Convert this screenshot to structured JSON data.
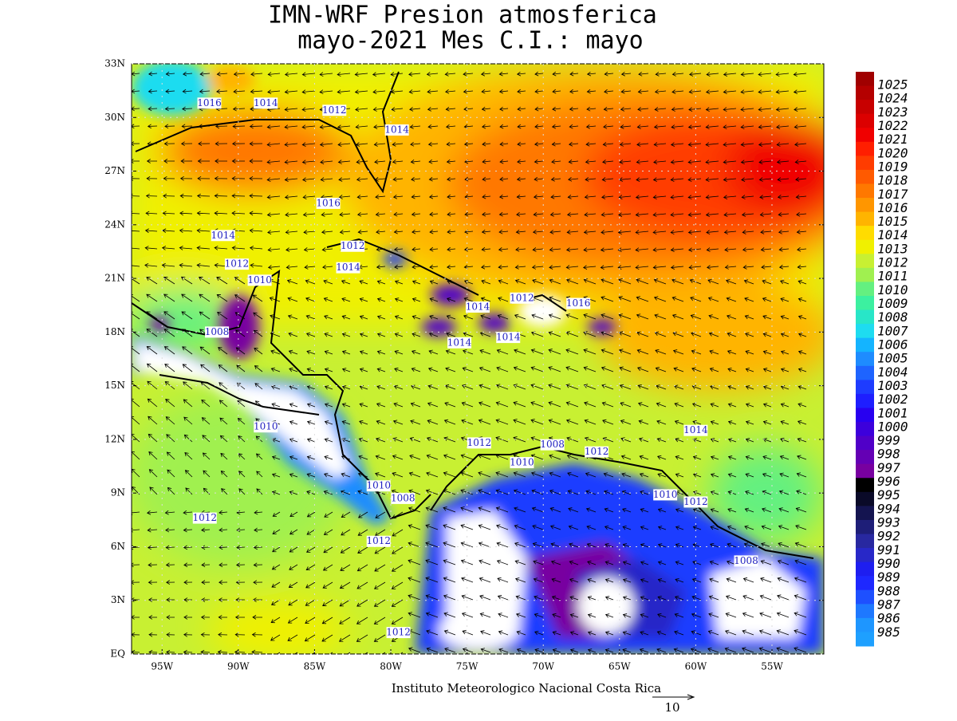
{
  "title": {
    "line1": "IMN-WRF  Presion atmosferica",
    "line2": "mayo-2021 Mes C.I.: mayo"
  },
  "map": {
    "xlim": [
      -97,
      -51.6
    ],
    "ylim": [
      0,
      33
    ],
    "lat_ticks": [
      {
        "value": 0,
        "label": "EQ"
      },
      {
        "value": 3,
        "label": "3N"
      },
      {
        "value": 6,
        "label": "6N"
      },
      {
        "value": 9,
        "label": "9N"
      },
      {
        "value": 12,
        "label": "12N"
      },
      {
        "value": 15,
        "label": "15N"
      },
      {
        "value": 18,
        "label": "18N"
      },
      {
        "value": 21,
        "label": "21N"
      },
      {
        "value": 24,
        "label": "24N"
      },
      {
        "value": 27,
        "label": "27N"
      },
      {
        "value": 30,
        "label": "30N"
      },
      {
        "value": 33,
        "label": "33N"
      }
    ],
    "lon_ticks": [
      {
        "value": -95,
        "label": "95W"
      },
      {
        "value": -90,
        "label": "90W"
      },
      {
        "value": -85,
        "label": "85W"
      },
      {
        "value": -80,
        "label": "80W"
      },
      {
        "value": -75,
        "label": "75W"
      },
      {
        "value": -70,
        "label": "70W"
      },
      {
        "value": -65,
        "label": "65W"
      },
      {
        "value": -60,
        "label": "60W"
      },
      {
        "value": -55,
        "label": "55W"
      }
    ],
    "contour_labels": [
      {
        "value": 1016,
        "lat": 30.8,
        "lon": -91.9
      },
      {
        "value": 1014,
        "lat": 30.8,
        "lon": -88.2
      },
      {
        "value": 1012,
        "lat": 30.4,
        "lon": -83.7
      },
      {
        "value": 1014,
        "lat": 29.3,
        "lon": -79.6
      },
      {
        "value": 1016,
        "lat": 25.2,
        "lon": -84.1
      },
      {
        "value": 1014,
        "lat": 23.4,
        "lon": -91.0
      },
      {
        "value": 1012,
        "lat": 22.8,
        "lon": -82.5
      },
      {
        "value": 1014,
        "lat": 21.6,
        "lon": -82.8
      },
      {
        "value": 1012,
        "lat": 21.8,
        "lon": -90.1
      },
      {
        "value": 1010,
        "lat": 20.9,
        "lon": -88.6
      },
      {
        "value": 1008,
        "lat": 18.0,
        "lon": -91.4
      },
      {
        "value": 1014,
        "lat": 19.4,
        "lon": -74.3
      },
      {
        "value": 1012,
        "lat": 19.9,
        "lon": -71.4
      },
      {
        "value": 1016,
        "lat": 19.6,
        "lon": -67.7
      },
      {
        "value": 1014,
        "lat": 17.4,
        "lon": -75.5
      },
      {
        "value": 1014,
        "lat": 17.7,
        "lon": -72.3
      },
      {
        "value": 1010,
        "lat": 12.7,
        "lon": -88.2
      },
      {
        "value": 1012,
        "lat": 11.8,
        "lon": -74.2
      },
      {
        "value": 1008,
        "lat": 11.7,
        "lon": -69.4
      },
      {
        "value": 1012,
        "lat": 11.3,
        "lon": -66.5
      },
      {
        "value": 1010,
        "lat": 10.7,
        "lon": -71.4
      },
      {
        "value": 1014,
        "lat": 12.5,
        "lon": -60.0
      },
      {
        "value": 1010,
        "lat": 9.4,
        "lon": -80.8
      },
      {
        "value": 1008,
        "lat": 8.7,
        "lon": -79.2
      },
      {
        "value": 1010,
        "lat": 8.9,
        "lon": -62.0
      },
      {
        "value": 1012,
        "lat": 8.5,
        "lon": -60.0
      },
      {
        "value": 1012,
        "lat": 7.6,
        "lon": -92.2
      },
      {
        "value": 1012,
        "lat": 6.3,
        "lon": -80.8
      },
      {
        "value": 1008,
        "lat": 5.2,
        "lon": -56.7
      },
      {
        "value": 1012,
        "lat": 1.2,
        "lon": -79.5
      }
    ]
  },
  "colorbar": {
    "levels": [
      {
        "value": 1025,
        "color": "#a00000"
      },
      {
        "value": 1024,
        "color": "#b40000"
      },
      {
        "value": 1023,
        "color": "#c80000"
      },
      {
        "value": 1022,
        "color": "#dc0000"
      },
      {
        "value": 1021,
        "color": "#f00000"
      },
      {
        "value": 1020,
        "color": "#ff1e00"
      },
      {
        "value": 1019,
        "color": "#ff3c00"
      },
      {
        "value": 1018,
        "color": "#ff5a00"
      },
      {
        "value": 1017,
        "color": "#ff7800"
      },
      {
        "value": 1016,
        "color": "#ff9600"
      },
      {
        "value": 1015,
        "color": "#ffb400"
      },
      {
        "value": 1014,
        "color": "#ffdc00"
      },
      {
        "value": 1013,
        "color": "#f0f000"
      },
      {
        "value": 1012,
        "color": "#c8f032"
      },
      {
        "value": 1011,
        "color": "#a0f050"
      },
      {
        "value": 1010,
        "color": "#64f080"
      },
      {
        "value": 1009,
        "color": "#3cf0a0"
      },
      {
        "value": 1008,
        "color": "#28e6c8"
      },
      {
        "value": 1007,
        "color": "#1edcf0"
      },
      {
        "value": 1006,
        "color": "#14b4ff"
      },
      {
        "value": 1005,
        "color": "#1e8cff"
      },
      {
        "value": 1004,
        "color": "#1e64ff"
      },
      {
        "value": 1003,
        "color": "#1e3cff"
      },
      {
        "value": 1002,
        "color": "#1e1eff"
      },
      {
        "value": 1001,
        "color": "#2800f0"
      },
      {
        "value": 1000,
        "color": "#3c00dc"
      },
      {
        "value": 999,
        "color": "#5000c8"
      },
      {
        "value": 998,
        "color": "#6400b4"
      },
      {
        "value": 997,
        "color": "#7800a0"
      },
      {
        "value": 996,
        "color": "#000000"
      },
      {
        "value": 995,
        "color": "#0a0a28"
      },
      {
        "value": 994,
        "color": "#141450"
      },
      {
        "value": 993,
        "color": "#1e1e78"
      },
      {
        "value": 992,
        "color": "#2828a0"
      },
      {
        "value": 991,
        "color": "#2828c8"
      },
      {
        "value": 990,
        "color": "#1e1ef0"
      },
      {
        "value": 989,
        "color": "#1e28ff"
      },
      {
        "value": 988,
        "color": "#1e50ff"
      },
      {
        "value": 987,
        "color": "#1e78ff"
      },
      {
        "value": 986,
        "color": "#1e96ff"
      },
      {
        "value": 985,
        "color": "#1ea0ff"
      }
    ]
  },
  "footer": {
    "credit": "Instituto Meteorologico Nacional Costa Rica",
    "vector_scale": 10
  }
}
